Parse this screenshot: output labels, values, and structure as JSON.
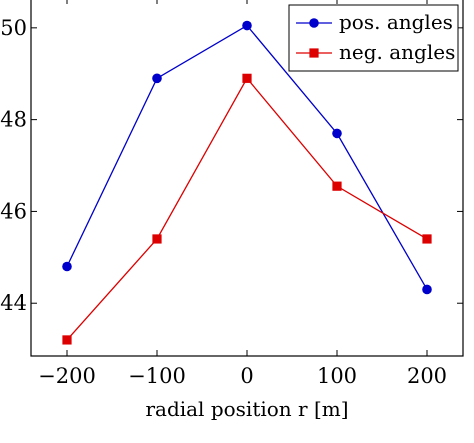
{
  "chart_data": {
    "type": "line",
    "title": "",
    "xlabel": "radial position r [m]",
    "ylabel": "",
    "xlim": [
      -240,
      240
    ],
    "ylim": [
      42.85,
      50.65
    ],
    "xticks": [
      -200,
      -100,
      0,
      100,
      200
    ],
    "xtick_labels": [
      "−200",
      "−100",
      "0",
      "100",
      "200"
    ],
    "yticks": [
      44,
      46,
      48,
      50
    ],
    "ytick_labels": [
      "44",
      "46",
      "48",
      "50"
    ],
    "grid": false,
    "legend_position": "top-right",
    "series": [
      {
        "name": "pos. angles",
        "color": "#0000cc",
        "marker": "circle",
        "x": [
          -200,
          -100,
          0,
          100,
          200
        ],
        "y": [
          44.8,
          48.9,
          50.05,
          47.7,
          44.3
        ]
      },
      {
        "name": "neg. angles",
        "color": "#dd0000",
        "marker": "square",
        "x": [
          -200,
          -100,
          0,
          100,
          200
        ],
        "y": [
          43.2,
          45.4,
          48.9,
          46.55,
          45.4
        ]
      }
    ]
  }
}
